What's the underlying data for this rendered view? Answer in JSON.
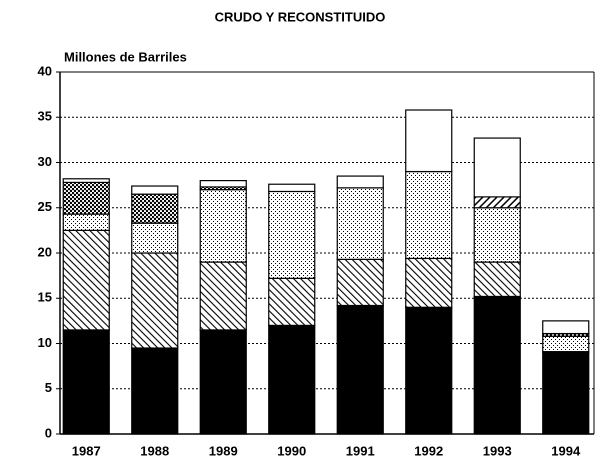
{
  "chart_data": {
    "type": "stacked_bar",
    "title": "CRUDO Y RECONSTITUIDO",
    "ylabel": "Millones de Barriles",
    "categories": [
      "1987",
      "1988",
      "1989",
      "1990",
      "1991",
      "1992",
      "1993",
      "1994"
    ],
    "series": [
      {
        "color": "#000000",
        "pattern": "solid",
        "values": [
          11.5,
          9.5,
          11.5,
          12,
          14.2,
          14,
          15.2,
          9
        ]
      },
      {
        "color": "#000000",
        "pattern": "hatch",
        "values": [
          11,
          10.5,
          7.5,
          5.2,
          5.1,
          5.4,
          3.8,
          0.1
        ]
      },
      {
        "color": "#000000",
        "pattern": "dots",
        "values": [
          1.8,
          3.3,
          8,
          9.6,
          7.9,
          9.6,
          6,
          1.7
        ]
      },
      {
        "color": "#000000",
        "pattern": "thick-hatch",
        "values": [
          0,
          0,
          0,
          0,
          0,
          0,
          1.2,
          0
        ]
      },
      {
        "color": "#000000",
        "pattern": "dense-dots",
        "values": [
          3.5,
          3.2,
          0.3,
          0,
          0,
          0,
          0,
          0.3
        ]
      },
      {
        "color": "#ffffff",
        "pattern": "solid",
        "values": [
          0.4,
          0.9,
          0.7,
          0.8,
          1.3,
          6.8,
          6.5,
          1.4
        ]
      }
    ],
    "ylim": [
      0,
      40
    ],
    "yticks": [
      0,
      5,
      10,
      15,
      20,
      25,
      30,
      35,
      40
    ],
    "grid": true
  }
}
